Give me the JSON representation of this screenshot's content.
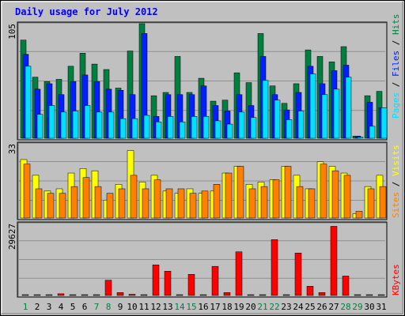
{
  "chart_data": [
    {
      "type": "bar",
      "title": "Daily usage for July 2012",
      "panel": "pages-files-hits",
      "max_label": "105",
      "ylim": [
        0,
        105
      ],
      "categories": [
        "1",
        "2",
        "3",
        "4",
        "5",
        "6",
        "7",
        "8",
        "9",
        "10",
        "11",
        "12",
        "13",
        "14",
        "15",
        "16",
        "17",
        "18",
        "19",
        "20",
        "21",
        "22",
        "23",
        "24",
        "25",
        "26",
        "27",
        "28",
        "29",
        "30",
        "31"
      ],
      "weekend_days": [
        "1",
        "7",
        "8",
        "14",
        "15",
        "21",
        "22",
        "28",
        "29"
      ],
      "series": [
        {
          "name": "Hits",
          "color": "#008040",
          "values": [
            90,
            56,
            52,
            54,
            66,
            78,
            68,
            63,
            46,
            80,
            105,
            39,
            42,
            75,
            42,
            55,
            34,
            35,
            60,
            51,
            96,
            48,
            32,
            50,
            81,
            75,
            70,
            84,
            2,
            39,
            43
          ]
        },
        {
          "name": "Files",
          "color": "#0020ff",
          "values": [
            77,
            45,
            50,
            40,
            52,
            58,
            52,
            45,
            44,
            40,
            96,
            20,
            40,
            40,
            40,
            48,
            30,
            25,
            40,
            30,
            75,
            40,
            26,
            42,
            66,
            50,
            62,
            67,
            2,
            33,
            28
          ]
        },
        {
          "name": "Pages",
          "color": "#00e0ff",
          "values": [
            66,
            22,
            30,
            24,
            25,
            30,
            24,
            24,
            18,
            18,
            21,
            15,
            20,
            15,
            20,
            20,
            16,
            13,
            24,
            19,
            53,
            35,
            17,
            25,
            59,
            40,
            45,
            56,
            1,
            11,
            28
          ]
        }
      ]
    },
    {
      "type": "bar",
      "panel": "visits-sites",
      "max_label": "33",
      "ylim": [
        0,
        33
      ],
      "categories": [
        "1",
        "2",
        "3",
        "4",
        "5",
        "6",
        "7",
        "8",
        "9",
        "10",
        "11",
        "12",
        "13",
        "14",
        "15",
        "16",
        "17",
        "18",
        "19",
        "20",
        "21",
        "22",
        "23",
        "24",
        "25",
        "26",
        "27",
        "28",
        "29",
        "30",
        "31"
      ],
      "series": [
        {
          "name": "Visits",
          "color": "#ffff00",
          "values": [
            26,
            19,
            12,
            13,
            20,
            22,
            21,
            8,
            15,
            30,
            16,
            19,
            12,
            11,
            13,
            11,
            12,
            20,
            23,
            15,
            16,
            17,
            23,
            19,
            13,
            25,
            23,
            20,
            2,
            14,
            19
          ]
        },
        {
          "name": "Sites",
          "color": "#ff8000",
          "values": [
            24,
            13,
            11,
            11,
            14,
            18,
            14,
            11,
            13,
            19,
            13,
            17,
            13,
            13,
            11,
            12,
            15,
            20,
            23,
            13,
            14,
            17,
            23,
            14,
            13,
            24,
            21,
            19,
            3,
            13,
            14
          ]
        }
      ]
    },
    {
      "type": "bar",
      "panel": "kbytes",
      "max_label": "29627",
      "ylim": [
        0,
        29627
      ],
      "categories": [
        "1",
        "2",
        "3",
        "4",
        "5",
        "6",
        "7",
        "8",
        "9",
        "10",
        "11",
        "12",
        "13",
        "14",
        "15",
        "16",
        "17",
        "18",
        "19",
        "20",
        "21",
        "22",
        "23",
        "24",
        "25",
        "26",
        "27",
        "28",
        "29",
        "30",
        "31"
      ],
      "series": [
        {
          "name": "KBytes",
          "color": "#ff0000",
          "values": [
            130,
            130,
            130,
            700,
            130,
            130,
            130,
            6300,
            1200,
            500,
            130,
            12600,
            10000,
            130,
            8700,
            130,
            12000,
            1200,
            18000,
            130,
            130,
            23000,
            130,
            17500,
            3800,
            1200,
            28500,
            8000,
            130,
            130,
            130
          ]
        }
      ]
    }
  ]
}
